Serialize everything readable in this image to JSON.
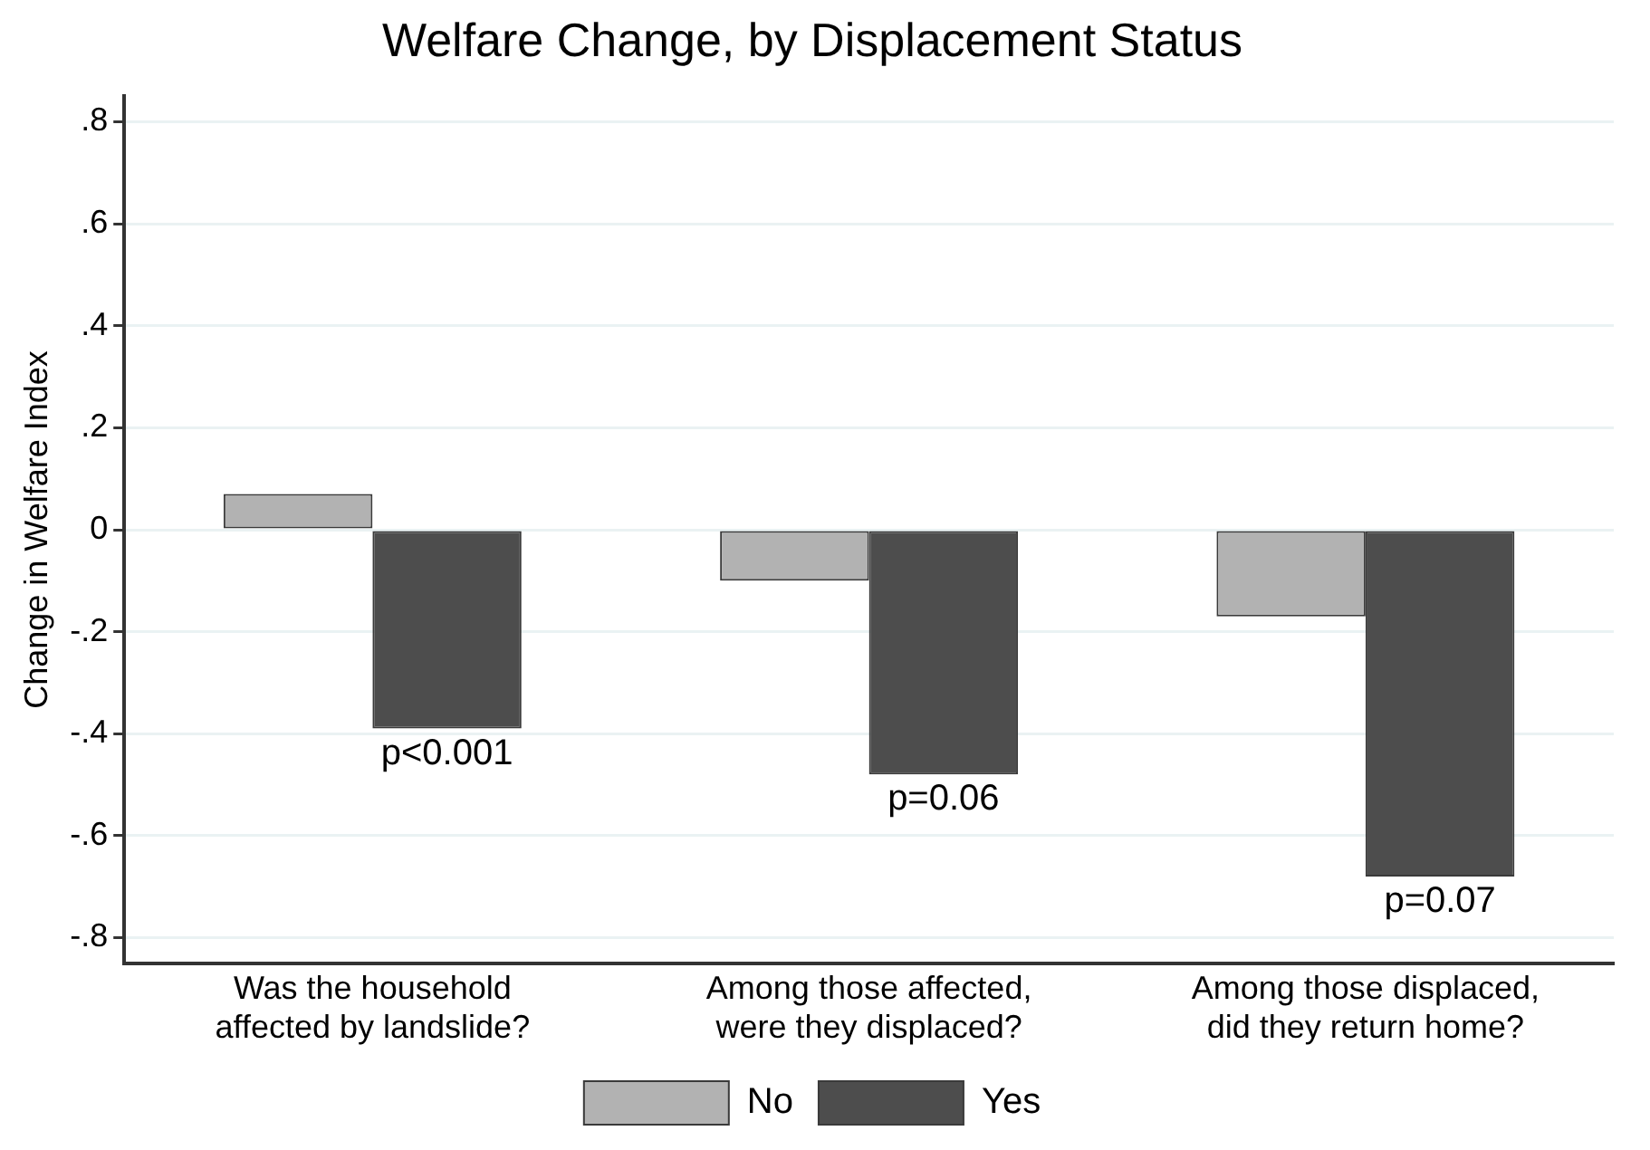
{
  "chart_data": {
    "type": "bar",
    "title": "Welfare Change, by Displacement Status",
    "ylabel": "Change in Welfare Index",
    "categories": [
      "Was the household\naffected by landslide?",
      "Among those affected,\nwere they displaced?",
      "Among those displaced,\ndid they return home?"
    ],
    "series": [
      {
        "name": "No",
        "color": "#b2b2b2",
        "values": [
          0.07,
          -0.1,
          -0.17
        ]
      },
      {
        "name": "Yes",
        "color": "#4d4d4d",
        "values": [
          -0.39,
          -0.48,
          -0.68
        ]
      }
    ],
    "ylim": [
      -0.85,
      0.85
    ],
    "yticks": [
      {
        "value": -0.8,
        "label": "-.8"
      },
      {
        "value": -0.6,
        "label": "-.6"
      },
      {
        "value": -0.4,
        "label": "-.4"
      },
      {
        "value": -0.2,
        "label": "-.2"
      },
      0,
      {
        "value": 0.2,
        "label": ".2"
      },
      {
        "value": 0.4,
        "label": ".4"
      },
      {
        "value": 0.6,
        "label": ".6"
      },
      {
        "value": 0.8,
        "label": ".8"
      }
    ],
    "annotations": [
      {
        "text": "p<0.001",
        "x": "Was the household\naffected by landslide?",
        "y": -0.39
      },
      {
        "text": "p=0.06",
        "x": "Among those affected,\nwere they displaced?",
        "y": -0.48
      },
      {
        "text": "p=0.07",
        "x": "Among those displaced,\ndid they return home?",
        "y": -0.68
      }
    ],
    "grid": "y",
    "legend": "bottom"
  }
}
